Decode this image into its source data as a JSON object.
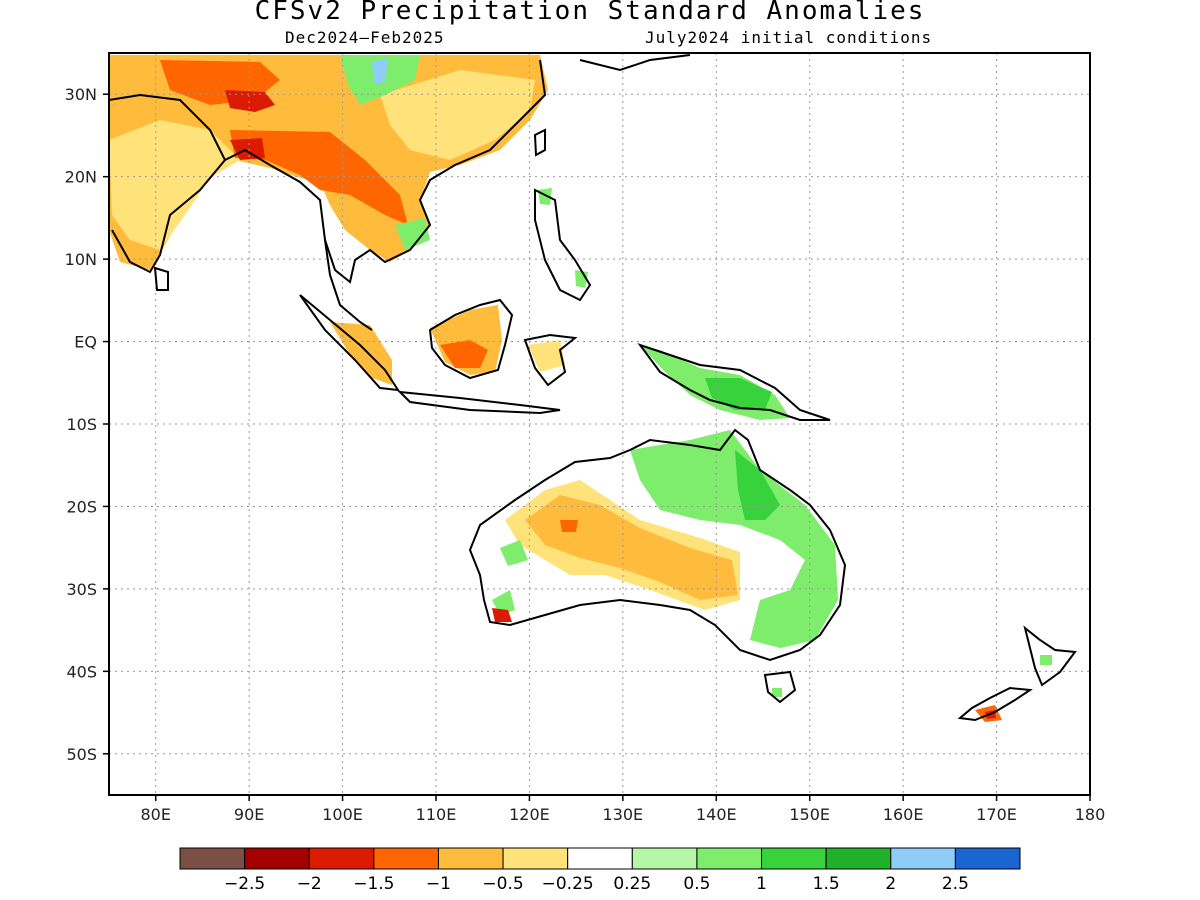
{
  "title": "CFSv2 Precipitation Standard Anomalies",
  "subtitle_left": "Dec2024–Feb2025",
  "subtitle_right": "July2024 initial conditions",
  "map": {
    "lon_range": [
      75,
      180
    ],
    "lat_range": [
      -55,
      35
    ],
    "lon_ticks": [
      {
        "value": 80,
        "label": "80E"
      },
      {
        "value": 90,
        "label": "90E"
      },
      {
        "value": 100,
        "label": "100E"
      },
      {
        "value": 110,
        "label": "110E"
      },
      {
        "value": 120,
        "label": "120E"
      },
      {
        "value": 130,
        "label": "130E"
      },
      {
        "value": 140,
        "label": "140E"
      },
      {
        "value": 150,
        "label": "150E"
      },
      {
        "value": 160,
        "label": "160E"
      },
      {
        "value": 170,
        "label": "170E"
      },
      {
        "value": 180,
        "label": "180"
      }
    ],
    "lat_ticks": [
      {
        "value": 30,
        "label": "30N"
      },
      {
        "value": 20,
        "label": "20N"
      },
      {
        "value": 10,
        "label": "10N"
      },
      {
        "value": 0,
        "label": "EQ"
      },
      {
        "value": -10,
        "label": "10S"
      },
      {
        "value": -20,
        "label": "20S"
      },
      {
        "value": -30,
        "label": "30S"
      },
      {
        "value": -40,
        "label": "40S"
      },
      {
        "value": -50,
        "label": "50S"
      }
    ],
    "gridlines": true
  },
  "legend": {
    "colors": [
      "#7a4f45",
      "#a40000",
      "#dc1a00",
      "#ff6600",
      "#ffbb3c",
      "#ffe27a",
      "#ffffff",
      "#b5f7a5",
      "#7ded6b",
      "#37d23c",
      "#1fb12a",
      "#8ecdf7",
      "#1a65d2"
    ],
    "labels": [
      "−2.5",
      "−2",
      "−1.5",
      "−1",
      "−0.5",
      "−0.25",
      "0.25",
      "0.5",
      "1",
      "1.5",
      "2",
      "2.5"
    ]
  }
}
